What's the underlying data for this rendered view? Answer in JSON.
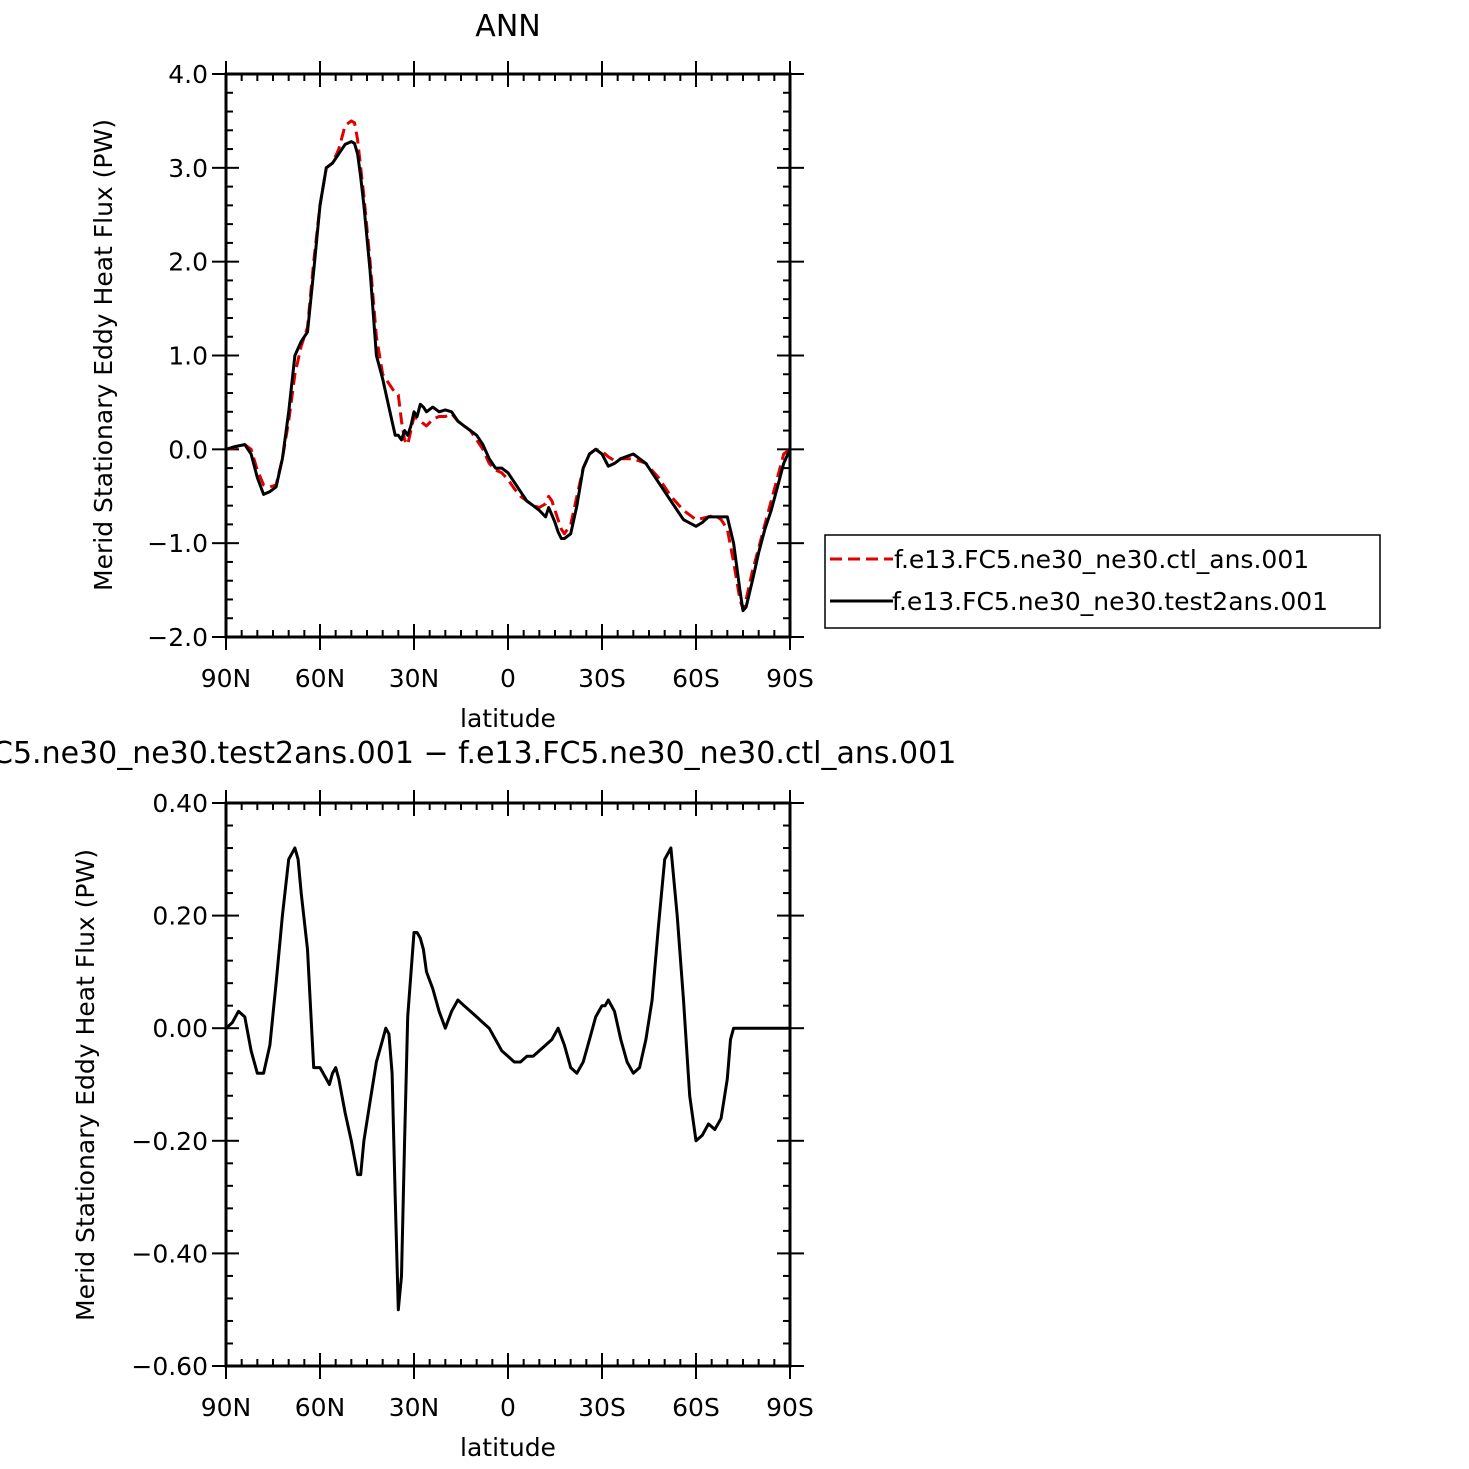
{
  "chart_data": [
    {
      "type": "line",
      "title": "ANN",
      "xlabel": "latitude",
      "ylabel": "Merid Stationary Eddy Heat Flux (PW)",
      "xlim": [
        90,
        -90
      ],
      "ylim": [
        -2.0,
        4.0
      ],
      "xticks": [
        90,
        60,
        30,
        0,
        -30,
        -60,
        -90
      ],
      "xtick_labels": [
        "90N",
        "60N",
        "30N",
        "0",
        "30S",
        "60S",
        "90S"
      ],
      "yticks": [
        -2.0,
        -1.0,
        0.0,
        1.0,
        2.0,
        3.0,
        4.0
      ],
      "ytick_labels": [
        "−2.0",
        "−1.0",
        "0.0",
        "1.0",
        "2.0",
        "3.0",
        "4.0"
      ],
      "grid": false,
      "legend": "right",
      "series": [
        {
          "name": "f.e13.FC5.ne30_ne30.ctl_ans.001",
          "color": "#e00000",
          "dash": "dashed",
          "x": [
            90,
            87,
            84,
            82,
            80,
            78,
            76,
            74,
            72,
            70,
            68,
            66,
            64,
            62,
            60,
            58,
            56,
            54,
            52,
            50,
            49,
            48,
            47,
            46,
            44,
            42,
            40,
            38,
            36,
            35,
            34,
            33,
            32,
            31,
            30,
            28,
            26,
            24,
            22,
            20,
            18,
            16,
            14,
            12,
            10,
            8,
            6,
            4,
            2,
            0,
            -2,
            -4,
            -6,
            -8,
            -10,
            -12,
            -13,
            -14,
            -15,
            -16,
            -17,
            -18,
            -20,
            -22,
            -24,
            -26,
            -28,
            -30,
            -32,
            -34,
            -36,
            -40,
            -44,
            -48,
            -52,
            -56,
            -60,
            -64,
            -66,
            -68,
            -70,
            -72,
            -74,
            -75,
            -76,
            -78,
            -80,
            -82,
            -84,
            -86,
            -88,
            -90
          ],
          "y": [
            0.0,
            0.02,
            0.05,
            0.0,
            -0.22,
            -0.38,
            -0.4,
            -0.38,
            -0.1,
            0.3,
            0.8,
            1.1,
            1.3,
            2.0,
            2.6,
            3.0,
            3.05,
            3.2,
            3.45,
            3.5,
            3.48,
            3.3,
            3.0,
            2.7,
            2.0,
            1.2,
            0.8,
            0.7,
            0.6,
            0.58,
            0.3,
            0.1,
            0.05,
            0.2,
            0.35,
            0.3,
            0.25,
            0.32,
            0.35,
            0.35,
            0.38,
            0.3,
            0.25,
            0.2,
            0.1,
            0.0,
            -0.15,
            -0.22,
            -0.25,
            -0.32,
            -0.42,
            -0.5,
            -0.55,
            -0.6,
            -0.62,
            -0.58,
            -0.5,
            -0.55,
            -0.65,
            -0.75,
            -0.85,
            -0.9,
            -0.8,
            -0.5,
            -0.2,
            -0.05,
            0.0,
            -0.02,
            -0.08,
            -0.12,
            -0.1,
            -0.1,
            -0.15,
            -0.3,
            -0.5,
            -0.65,
            -0.75,
            -0.72,
            -0.7,
            -0.75,
            -0.85,
            -1.2,
            -1.6,
            -1.7,
            -1.6,
            -1.3,
            -1.05,
            -0.8,
            -0.55,
            -0.3,
            -0.05,
            0.0
          ]
        },
        {
          "name": "f.e13.FC5.ne30_ne30.test2ans.001",
          "color": "#000000",
          "dash": "solid",
          "x": [
            90,
            87,
            84,
            82,
            80,
            78,
            76,
            74,
            72,
            70,
            68,
            66,
            64,
            62,
            60,
            58,
            56,
            54,
            52,
            50,
            49,
            48,
            47,
            46,
            44,
            42,
            40,
            38,
            36,
            35,
            34,
            33,
            32,
            31,
            30,
            29,
            28,
            27,
            26,
            24,
            22,
            20,
            18,
            16,
            14,
            12,
            10,
            8,
            6,
            4,
            2,
            0,
            -2,
            -4,
            -6,
            -8,
            -10,
            -12,
            -13,
            -14,
            -15,
            -16,
            -17,
            -18,
            -20,
            -22,
            -24,
            -26,
            -28,
            -30,
            -32,
            -34,
            -36,
            -40,
            -44,
            -48,
            -52,
            -56,
            -60,
            -62,
            -64,
            -66,
            -68,
            -70,
            -72,
            -74,
            -75,
            -76,
            -78,
            -80,
            -82,
            -84,
            -86,
            -88,
            -90
          ],
          "y": [
            0.0,
            0.03,
            0.05,
            -0.05,
            -0.3,
            -0.48,
            -0.45,
            -0.4,
            -0.1,
            0.4,
            1.0,
            1.15,
            1.25,
            1.9,
            2.6,
            3.0,
            3.05,
            3.15,
            3.25,
            3.28,
            3.26,
            3.15,
            2.9,
            2.6,
            1.9,
            1.0,
            0.75,
            0.45,
            0.15,
            0.15,
            0.1,
            0.2,
            0.15,
            0.25,
            0.4,
            0.35,
            0.48,
            0.45,
            0.4,
            0.45,
            0.4,
            0.42,
            0.4,
            0.3,
            0.25,
            0.2,
            0.15,
            0.05,
            -0.1,
            -0.2,
            -0.2,
            -0.25,
            -0.35,
            -0.45,
            -0.55,
            -0.6,
            -0.65,
            -0.72,
            -0.62,
            -0.7,
            -0.78,
            -0.88,
            -0.95,
            -0.95,
            -0.9,
            -0.6,
            -0.2,
            -0.05,
            0.0,
            -0.05,
            -0.18,
            -0.15,
            -0.1,
            -0.05,
            -0.15,
            -0.35,
            -0.55,
            -0.75,
            -0.82,
            -0.78,
            -0.72,
            -0.72,
            -0.72,
            -0.72,
            -1.0,
            -1.5,
            -1.72,
            -1.68,
            -1.4,
            -1.1,
            -0.85,
            -0.65,
            -0.4,
            -0.15,
            0.0
          ]
        }
      ]
    },
    {
      "type": "line",
      "title": "C5.ne30_ne30.test2ans.001 − f.e13.FC5.ne30_ne30.ctl_ans.001",
      "xlabel": "latitude",
      "ylabel": "Merid Stationary Eddy Heat Flux (PW)",
      "xlim": [
        90,
        -90
      ],
      "ylim": [
        -0.6,
        0.4
      ],
      "xticks": [
        90,
        60,
        30,
        0,
        -30,
        -60,
        -90
      ],
      "xtick_labels": [
        "90N",
        "60N",
        "30N",
        "0",
        "30S",
        "60S",
        "90S"
      ],
      "yticks": [
        -0.6,
        -0.4,
        -0.2,
        0.0,
        0.2,
        0.4
      ],
      "ytick_labels": [
        "−0.60",
        "−0.40",
        "−0.20",
        "0.00",
        "0.20",
        "0.40"
      ],
      "grid": false,
      "series": [
        {
          "color": "#000000",
          "dash": "solid",
          "x": [
            90,
            88,
            86,
            84,
            82,
            80,
            78,
            76,
            74,
            72,
            70,
            68,
            67,
            66,
            64,
            62,
            60,
            58,
            57,
            56,
            55,
            54,
            52,
            50,
            48,
            47,
            46,
            44,
            42,
            40,
            39,
            38,
            37,
            36,
            35,
            34,
            33,
            32,
            30,
            29,
            28,
            27,
            26,
            24,
            22,
            20,
            18,
            16,
            14,
            12,
            10,
            8,
            6,
            4,
            2,
            0,
            -2,
            -4,
            -6,
            -8,
            -10,
            -12,
            -14,
            -16,
            -18,
            -20,
            -22,
            -24,
            -26,
            -28,
            -30,
            -31,
            -32,
            -34,
            -36,
            -38,
            -40,
            -42,
            -44,
            -46,
            -48,
            -50,
            -52,
            -54,
            -56,
            -58,
            -60,
            -62,
            -64,
            -66,
            -68,
            -70,
            -71,
            -72,
            -74,
            -76,
            -78,
            -80,
            -82,
            -84,
            -86,
            -88,
            -90
          ],
          "y": [
            0.0,
            0.01,
            0.03,
            0.02,
            -0.04,
            -0.08,
            -0.08,
            -0.03,
            0.08,
            0.2,
            0.3,
            0.32,
            0.3,
            0.24,
            0.14,
            -0.07,
            -0.07,
            -0.09,
            -0.1,
            -0.08,
            -0.07,
            -0.09,
            -0.15,
            -0.2,
            -0.26,
            -0.26,
            -0.2,
            -0.13,
            -0.06,
            -0.02,
            0.0,
            -0.01,
            -0.08,
            -0.3,
            -0.5,
            -0.44,
            -0.2,
            0.02,
            0.17,
            0.17,
            0.16,
            0.14,
            0.1,
            0.07,
            0.03,
            0.0,
            0.03,
            0.05,
            0.04,
            0.03,
            0.02,
            0.01,
            0.0,
            -0.02,
            -0.04,
            -0.05,
            -0.06,
            -0.06,
            -0.05,
            -0.05,
            -0.04,
            -0.03,
            -0.02,
            0.0,
            -0.03,
            -0.07,
            -0.08,
            -0.06,
            -0.02,
            0.02,
            0.04,
            0.04,
            0.05,
            0.03,
            -0.02,
            -0.06,
            -0.08,
            -0.07,
            -0.02,
            0.05,
            0.18,
            0.3,
            0.32,
            0.2,
            0.05,
            -0.12,
            -0.2,
            -0.19,
            -0.17,
            -0.18,
            -0.16,
            -0.09,
            -0.02,
            0.0,
            0.0,
            0.0,
            0.0,
            0.0,
            0.0,
            0.0,
            0.0,
            0.0,
            0.0
          ]
        }
      ]
    }
  ]
}
